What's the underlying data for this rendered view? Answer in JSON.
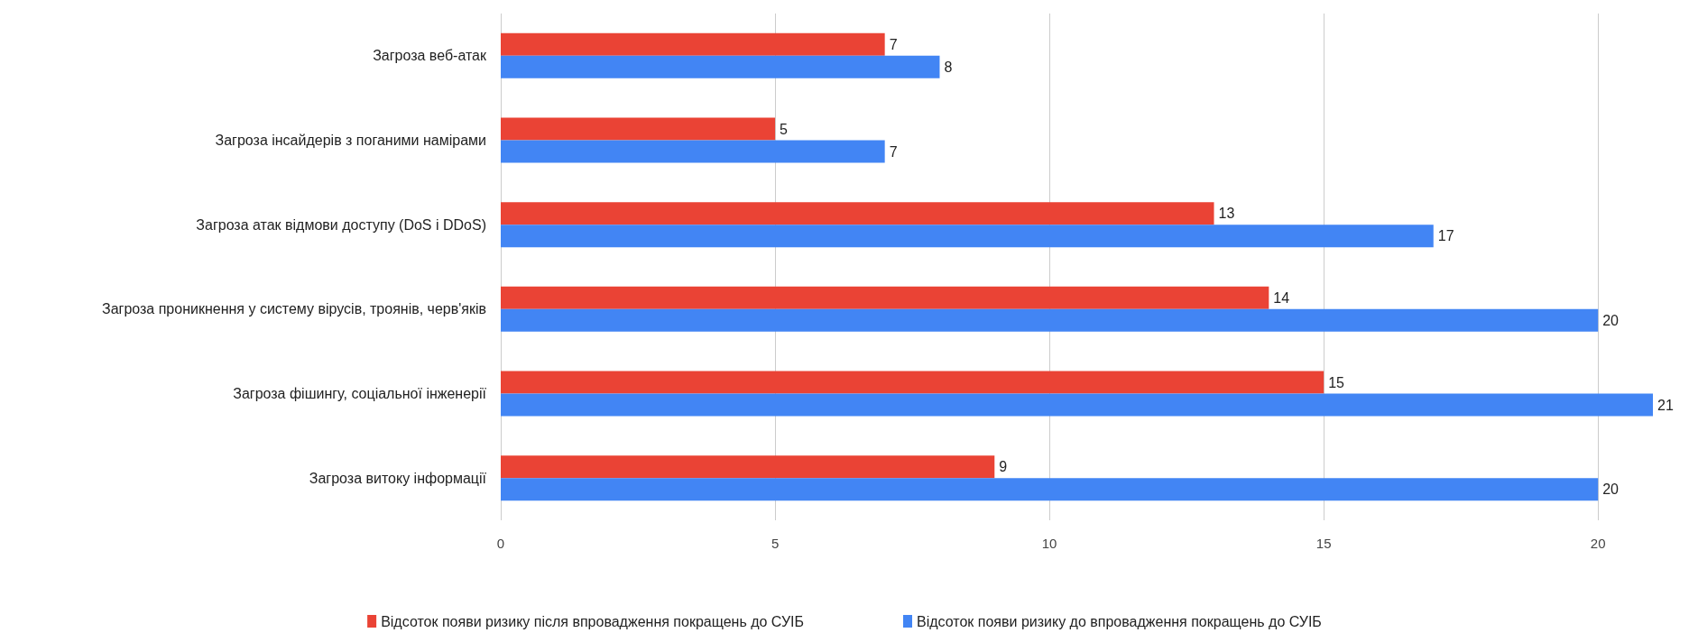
{
  "chart_data": {
    "type": "bar",
    "orientation": "horizontal",
    "categories": [
      "Загроза веб-атак",
      "Загроза інсайдерів з поганими намірами",
      "Загроза атак відмови доступу (DoS і DDoS)",
      "Загроза проникнення у систему вірусів, троянів, черв'яків",
      "Загроза фішингу, соціальної інженерії",
      "Загроза витоку інформації"
    ],
    "series": [
      {
        "name": "Відсоток появи ризику після впровадження покращень до СУІБ",
        "color": "#ea4335",
        "values": [
          7,
          5,
          13,
          14,
          15,
          9
        ]
      },
      {
        "name": "Відсоток появи ризику до впровадження покращень до СУІБ",
        "color": "#4285f4",
        "values": [
          8,
          7,
          17,
          20,
          21,
          20
        ]
      }
    ],
    "xlim": [
      0,
      21
    ],
    "xticks": [
      0,
      5,
      10,
      15,
      20
    ],
    "grid": "x",
    "legend": "bottom",
    "data_labels": true
  }
}
